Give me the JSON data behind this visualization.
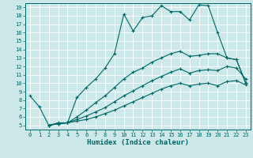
{
  "title": "",
  "xlabel": "Humidex (Indice chaleur)",
  "background_color": "#cce8e8",
  "grid_color": "#ffffff",
  "line_color": "#006666",
  "xlim": [
    -0.5,
    23.5
  ],
  "ylim": [
    4.5,
    19.5
  ],
  "xticks": [
    0,
    1,
    2,
    3,
    4,
    5,
    6,
    7,
    8,
    9,
    10,
    11,
    12,
    13,
    14,
    15,
    16,
    17,
    18,
    19,
    20,
    21,
    22,
    23
  ],
  "yticks": [
    5,
    6,
    7,
    8,
    9,
    10,
    11,
    12,
    13,
    14,
    15,
    16,
    17,
    18,
    19
  ],
  "lines": [
    {
      "x": [
        0,
        1,
        2,
        3,
        4,
        5,
        6,
        7,
        8,
        9,
        10,
        11,
        12,
        13,
        14,
        15,
        16,
        17,
        18,
        19,
        20,
        21,
        22,
        23
      ],
      "y": [
        8.5,
        7.2,
        5.0,
        5.3,
        5.3,
        8.3,
        9.5,
        10.5,
        11.8,
        13.5,
        18.2,
        16.2,
        17.8,
        18.0,
        19.2,
        18.5,
        18.5,
        17.5,
        19.3,
        19.2,
        16.0,
        13.0,
        12.8,
        10.0
      ]
    },
    {
      "x": [
        2,
        3,
        4,
        5,
        6,
        7,
        8,
        9,
        10,
        11,
        12,
        13,
        14,
        15,
        16,
        17,
        18,
        19,
        20,
        21,
        22,
        23
      ],
      "y": [
        5.0,
        5.2,
        5.3,
        5.5,
        5.7,
        6.0,
        6.4,
        6.8,
        7.3,
        7.8,
        8.3,
        8.8,
        9.3,
        9.7,
        10.0,
        9.7,
        9.9,
        10.0,
        9.7,
        10.2,
        10.3,
        9.8
      ]
    },
    {
      "x": [
        2,
        3,
        4,
        5,
        6,
        7,
        8,
        9,
        10,
        11,
        12,
        13,
        14,
        15,
        16,
        17,
        18,
        19,
        20,
        21,
        22,
        23
      ],
      "y": [
        5.0,
        5.2,
        5.3,
        6.0,
        6.8,
        7.7,
        8.5,
        9.5,
        10.5,
        11.3,
        11.8,
        12.5,
        13.0,
        13.5,
        13.8,
        13.2,
        13.3,
        13.5,
        13.5,
        13.0,
        12.8,
        10.0
      ]
    },
    {
      "x": [
        2,
        3,
        4,
        5,
        6,
        7,
        8,
        9,
        10,
        11,
        12,
        13,
        14,
        15,
        16,
        17,
        18,
        19,
        20,
        21,
        22,
        23
      ],
      "y": [
        5.0,
        5.2,
        5.3,
        5.7,
        6.1,
        6.6,
        7.1,
        7.8,
        8.5,
        9.1,
        9.7,
        10.3,
        10.8,
        11.3,
        11.7,
        11.2,
        11.5,
        11.6,
        11.5,
        12.0,
        11.8,
        10.5
      ]
    }
  ]
}
